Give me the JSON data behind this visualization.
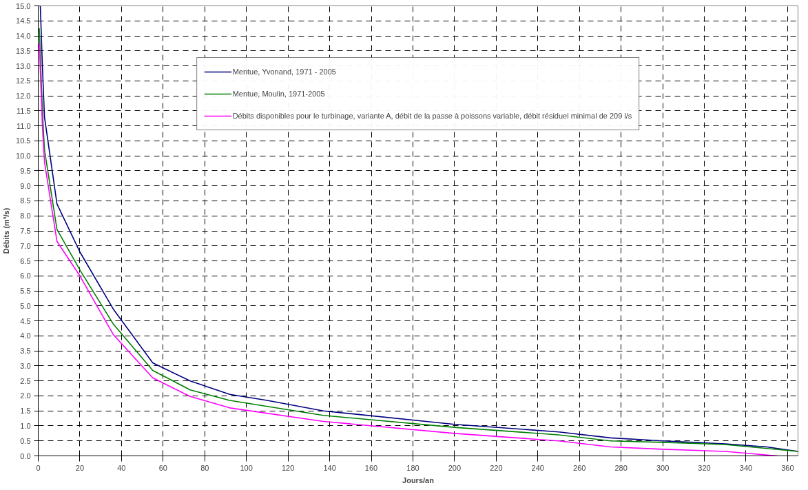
{
  "chart_data": {
    "type": "line",
    "xlabel": "Jours/an",
    "ylabel": "Débits (m³/s)",
    "xlim": [
      0,
      365
    ],
    "xticks": [
      0,
      20,
      40,
      60,
      80,
      100,
      120,
      140,
      160,
      180,
      200,
      220,
      240,
      260,
      280,
      300,
      320,
      340,
      360
    ],
    "ylim": [
      0,
      15
    ],
    "yticks": [
      {
        "value": 0,
        "label": "0.0"
      },
      {
        "value": 0.5,
        "label": "0.5"
      },
      {
        "value": 1,
        "label": "1.0"
      },
      {
        "value": 1.5,
        "label": "1.5"
      },
      {
        "value": 2,
        "label": "2.0"
      },
      {
        "value": 2.5,
        "label": "2.5"
      },
      {
        "value": 3,
        "label": "3.0"
      },
      {
        "value": 3.5,
        "label": "3.5"
      },
      {
        "value": 4,
        "label": "4.0"
      },
      {
        "value": 4.5,
        "label": "4.5"
      },
      {
        "value": 5,
        "label": "5.0"
      },
      {
        "value": 5.5,
        "label": "5.5"
      },
      {
        "value": 6,
        "label": "6.0"
      },
      {
        "value": 6.5,
        "label": "6.5"
      },
      {
        "value": 7,
        "label": "7.0"
      },
      {
        "value": 7.5,
        "label": "7.5"
      },
      {
        "value": 8,
        "label": "8.0"
      },
      {
        "value": 8.5,
        "label": "8.5"
      },
      {
        "value": 9,
        "label": "9.0"
      },
      {
        "value": 9.5,
        "label": "9.5"
      },
      {
        "value": 10,
        "label": "10.0"
      },
      {
        "value": 10.5,
        "label": "10.5"
      },
      {
        "value": 11,
        "label": "11.0"
      },
      {
        "value": 11.5,
        "label": "11.5"
      },
      {
        "value": 12,
        "label": "12.0"
      },
      {
        "value": 12.5,
        "label": "12.5"
      },
      {
        "value": 13,
        "label": "13.0"
      },
      {
        "value": 13.5,
        "label": "13.5"
      },
      {
        "value": 14,
        "label": "14.0"
      },
      {
        "value": 14.5,
        "label": "14.5"
      },
      {
        "value": 15,
        "label": "15.0"
      }
    ],
    "grid": true,
    "legend": "top",
    "marker": "none",
    "line_style": "solid",
    "series": [
      {
        "name": "Mentue, Yvonand, 1971 - 2005",
        "color": "#000080",
        "x": [
          1,
          2,
          3,
          9,
          20,
          36,
          55,
          73,
          92,
          110,
          137,
          200,
          250,
          275,
          300,
          330,
          350,
          365
        ],
        "values": [
          15.0,
          13.0,
          11.3,
          8.4,
          6.8,
          4.9,
          3.1,
          2.5,
          2.05,
          1.85,
          1.5,
          1.05,
          0.8,
          0.6,
          0.5,
          0.4,
          0.3,
          0.15
        ]
      },
      {
        "name": "Mentue, Moulin, 1971-2005",
        "color": "#008000",
        "x": [
          0.5,
          2,
          3,
          9,
          20,
          36,
          55,
          73,
          92,
          137,
          200,
          250,
          275,
          300,
          330,
          365
        ],
        "values": [
          14.25,
          11.5,
          10.2,
          7.55,
          6.2,
          4.4,
          2.85,
          2.2,
          1.85,
          1.35,
          0.95,
          0.7,
          0.5,
          0.45,
          0.38,
          0.15
        ]
      },
      {
        "name": "Débits disponibles pour le turbinage, variante A, débit de la passe à poissons variable, débit résiduel minimal de 209 l/s",
        "color": "#ff00ff",
        "x": [
          0.5,
          2,
          3,
          9,
          20,
          36,
          55,
          73,
          92,
          137,
          200,
          250,
          275,
          300,
          330,
          355
        ],
        "values": [
          13.75,
          11.0,
          9.8,
          7.15,
          6.0,
          4.05,
          2.6,
          1.98,
          1.6,
          1.15,
          0.75,
          0.5,
          0.3,
          0.22,
          0.15,
          0.0
        ]
      }
    ]
  }
}
